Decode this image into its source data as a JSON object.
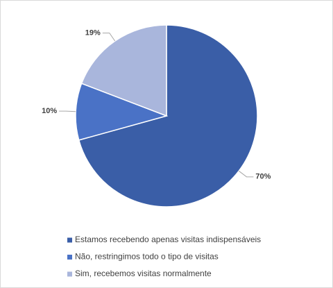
{
  "chart_data": {
    "type": "pie",
    "categories": [
      "Estamos recebendo apenas visitas indispensáveis",
      "Não, restringimos todo o tipo de visitas",
      "Sim, recebemos visitas normalmente"
    ],
    "values": [
      70,
      10,
      19
    ],
    "value_labels": [
      "70%",
      "10%",
      "19%"
    ],
    "colors": [
      "#3a5ea7",
      "#4a72c6",
      "#a9b6dc"
    ],
    "legend": "bottom"
  }
}
